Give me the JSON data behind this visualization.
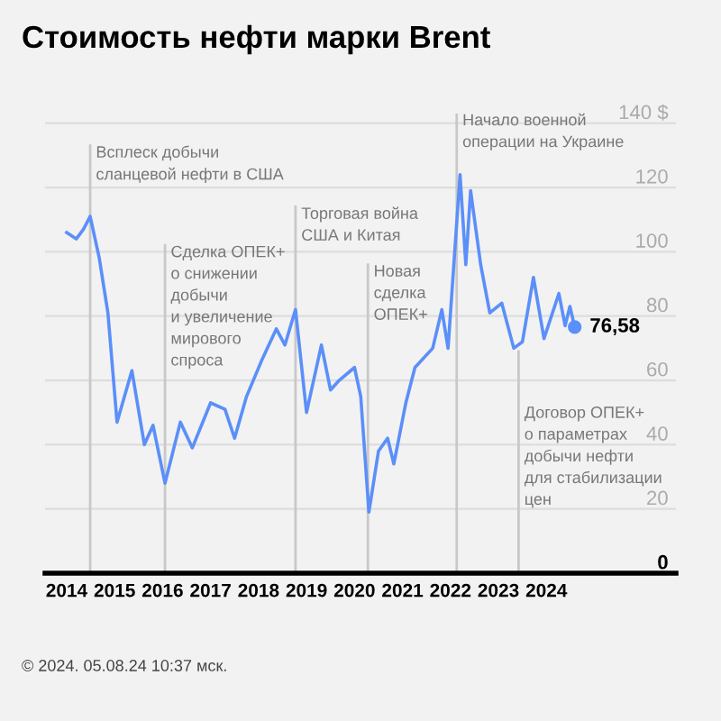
{
  "chart_data": {
    "type": "line",
    "title": "Стоимость нефти марки Brent",
    "x": [
      2014.0,
      2014.2,
      2014.35,
      2014.49,
      2014.68,
      2014.86,
      2015.05,
      2015.36,
      2015.62,
      2015.8,
      2016.05,
      2016.37,
      2016.62,
      2017.0,
      2017.3,
      2017.5,
      2017.75,
      2018.06,
      2018.37,
      2018.55,
      2018.77,
      2019.0,
      2019.31,
      2019.5,
      2019.68,
      2020.0,
      2020.13,
      2020.3,
      2020.5,
      2020.69,
      2020.82,
      2021.07,
      2021.26,
      2021.63,
      2021.82,
      2021.95,
      2022.2,
      2022.32,
      2022.42,
      2022.63,
      2022.82,
      2023.07,
      2023.32,
      2023.5,
      2023.73,
      2023.95,
      2024.26,
      2024.39,
      2024.49,
      2024.59
    ],
    "series": [
      {
        "color": "#5b8ff9",
        "values": [
          106,
          104,
          107,
          111,
          98,
          81,
          47,
          63,
          40,
          46,
          28,
          47,
          39,
          53,
          51,
          42,
          55,
          66,
          76,
          71,
          82,
          50,
          71,
          57,
          60,
          64,
          55,
          19,
          38,
          42,
          34,
          53,
          64,
          70,
          82,
          70,
          124,
          96,
          119,
          96,
          81,
          84,
          70,
          72,
          92,
          73,
          87,
          77,
          83,
          76.58
        ],
        "value_labels": [
          null,
          null,
          null,
          null,
          null,
          null,
          null,
          null,
          null,
          null,
          null,
          null,
          null,
          null,
          null,
          null,
          null,
          null,
          null,
          null,
          null,
          null,
          null,
          null,
          null,
          null,
          null,
          null,
          null,
          null,
          null,
          null,
          null,
          null,
          null,
          null,
          null,
          null,
          null,
          null,
          null,
          null,
          null,
          null,
          null,
          null,
          null,
          null,
          null,
          "76,58"
        ]
      }
    ],
    "xlim": [
      2013.55,
      2026.7
    ],
    "ylim": [
      0,
      143
    ],
    "xticks": [
      {
        "value": 2014,
        "label": "2014"
      },
      {
        "value": 2015,
        "label": "2015"
      },
      {
        "value": 2016,
        "label": "2016"
      },
      {
        "value": 2017,
        "label": "2017"
      },
      {
        "value": 2018,
        "label": "2018"
      },
      {
        "value": 2019,
        "label": "2019"
      },
      {
        "value": 2020,
        "label": "2020"
      },
      {
        "value": 2021,
        "label": "2021"
      },
      {
        "value": 2022,
        "label": "2022"
      },
      {
        "value": 2023,
        "label": "2023"
      },
      {
        "value": 2024,
        "label": "2024"
      }
    ],
    "yticks": [
      0,
      20,
      40,
      60,
      80,
      100,
      120,
      {
        "value": 140,
        "label": "140 $"
      }
    ],
    "grid": "y",
    "marker": "none",
    "line_style": "solid",
    "ref_lines": [
      {
        "axis": "x",
        "value": 2014.49,
        "label": "Всплеск добычи\nсланцевой нефти в США",
        "color": "#c8c8c8"
      },
      {
        "axis": "x",
        "value": 2016.05,
        "label": "Сделка ОПЕК+\nо снижении\nдобычи\nи увеличение\nмирового\nспроса",
        "color": "#c8c8c8"
      },
      {
        "axis": "x",
        "value": 2018.77,
        "label": "Торговая война\nСША и Китая",
        "color": "#c8c8c8"
      },
      {
        "axis": "x",
        "value": 2020.28,
        "label": "Новая\nсделка\nОПЕК+",
        "color": "#c8c8c8"
      },
      {
        "axis": "x",
        "value": 2022.13,
        "label": "Начало военной\nоперации на Украине",
        "color": "#c8c8c8"
      },
      {
        "axis": "x",
        "value": 2023.42,
        "label": "Договор ОПЕК+\nо параметрах\nдобычи нефти\nдля стабилизации\nцен",
        "color": "#c8c8c8"
      }
    ],
    "annotations": [
      "© 2024. 05.08.24 10:37 мск."
    ]
  }
}
